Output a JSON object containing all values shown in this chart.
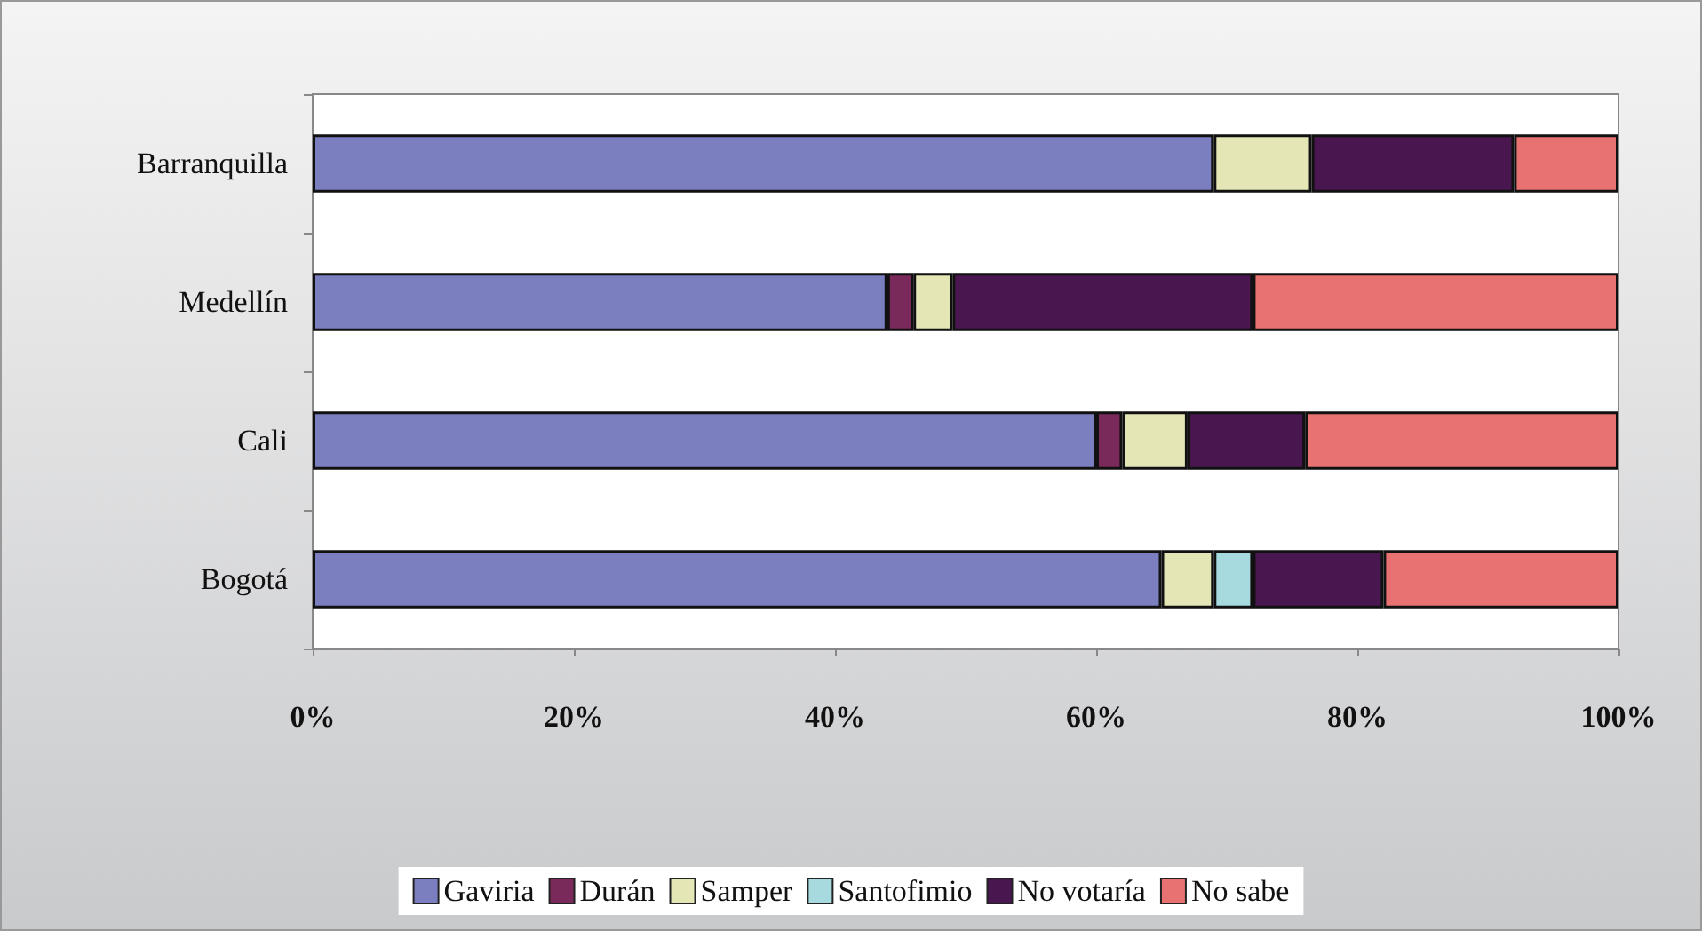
{
  "chart_data": {
    "type": "bar",
    "orientation": "horizontal",
    "stacked": true,
    "categories": [
      "Barranquilla",
      "Medellín",
      "Cali",
      "Bogotá"
    ],
    "series": [
      {
        "name": "Gaviria",
        "color": "#7b7fc0",
        "values": [
          69,
          44,
          60,
          65
        ]
      },
      {
        "name": "Durán",
        "color": "#7a2a5a",
        "values": [
          null,
          2,
          2,
          null
        ]
      },
      {
        "name": "Samper",
        "color": "#e4e6b6",
        "values": [
          7.5,
          3,
          5,
          4
        ]
      },
      {
        "name": "Santofimio",
        "color": "#a6dadf",
        "values": [
          null,
          null,
          null,
          3
        ]
      },
      {
        "name": "No votaría",
        "color": "#4a1650",
        "values": [
          15.5,
          23,
          9,
          10
        ]
      },
      {
        "name": "No sabe",
        "color": "#e87272",
        "values": [
          8,
          28,
          24,
          18
        ]
      }
    ],
    "xlim": [
      0,
      100
    ],
    "xticks": [
      {
        "value": 0,
        "label": "0%"
      },
      {
        "value": 20,
        "label": "20%"
      },
      {
        "value": 40,
        "label": "40%"
      },
      {
        "value": 60,
        "label": "60%"
      },
      {
        "value": 80,
        "label": "80%"
      },
      {
        "value": 100,
        "label": "100%"
      }
    ],
    "grid": false,
    "legend": "bottom"
  }
}
